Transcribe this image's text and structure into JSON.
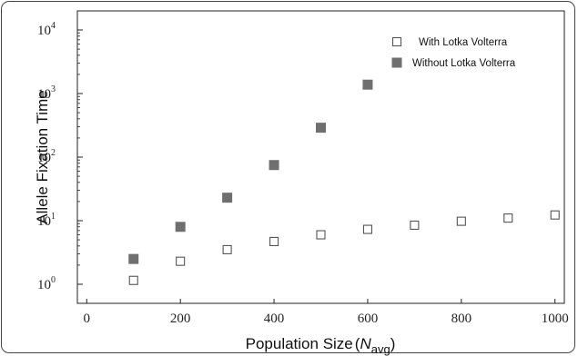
{
  "chart_data": {
    "type": "scatter",
    "title": "",
    "xlabel": "Population Size",
    "xlabel_symbol": "N",
    "xlabel_subscript": "avg",
    "ylabel": "Allele Fixation Time",
    "xlim": [
      -20,
      1020
    ],
    "ylim_log10": [
      -0.3,
      4.3
    ],
    "yscale": "log",
    "grid": false,
    "legend_position": "top-right",
    "x_ticks": [
      0,
      200,
      400,
      600,
      800,
      1000
    ],
    "y_ticks": [
      {
        "base": "10",
        "exp": "0",
        "value": 1
      },
      {
        "base": "10",
        "exp": "1",
        "value": 10
      },
      {
        "base": "10",
        "exp": "2",
        "value": 100
      },
      {
        "base": "10",
        "exp": "3",
        "value": 1000
      },
      {
        "base": "10",
        "exp": "4",
        "value": 10000
      }
    ],
    "series": [
      {
        "name": "With Lotka Volterra",
        "marker": "open-square",
        "color": "#555555",
        "x": [
          100,
          200,
          300,
          400,
          500,
          600,
          700,
          800,
          900,
          1000
        ],
        "y": [
          1.15,
          2.3,
          3.5,
          4.7,
          6.0,
          7.3,
          8.5,
          9.8,
          11.0,
          12.3
        ]
      },
      {
        "name": "Without Lotka Volterra",
        "marker": "filled-square",
        "color": "#6f6f6f",
        "x": [
          100,
          200,
          300,
          400,
          500,
          600
        ],
        "y": [
          2.5,
          8.0,
          23,
          75,
          290,
          1380
        ]
      }
    ]
  }
}
